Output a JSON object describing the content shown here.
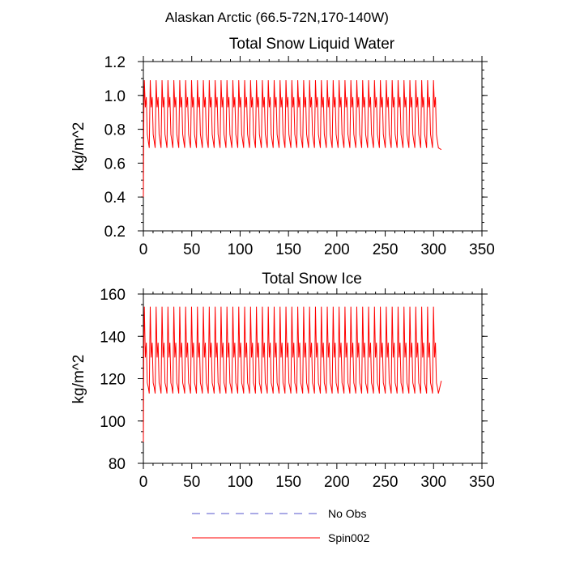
{
  "figure": {
    "title": "Alaskan Arctic (66.5-72N,170-140W)"
  },
  "legend": {
    "items": [
      {
        "label": "No Obs",
        "color": "#5555cc",
        "style": "dashed"
      },
      {
        "label": "Spin002",
        "color": "#ff0000",
        "style": "solid"
      }
    ]
  },
  "chart_data": [
    {
      "type": "line",
      "title": "Total Snow Liquid Water",
      "xlabel": "",
      "ylabel": "kg/m^2",
      "xlim": [
        0,
        350
      ],
      "ylim": [
        0.2,
        1.2
      ],
      "x_ticks": [
        0,
        50,
        100,
        150,
        200,
        250,
        300,
        350
      ],
      "y_ticks": [
        0.2,
        0.4,
        0.6,
        0.8,
        1.0,
        1.2
      ],
      "y_tick_labels": [
        "0.2",
        "0.4",
        "0.6",
        "0.8",
        "1.0",
        "1.2"
      ],
      "grid": false,
      "series": [
        {
          "name": "Spin002",
          "color": "#ff0000",
          "x_start": 0,
          "x_step": 1,
          "initial_values": [
            0.4,
            0.9
          ],
          "cycle_days": 6.1,
          "cycle_count": 50,
          "cycle_profile": [
            1.09,
            0.93,
            0.99,
            0.77,
            0.73,
            0.69
          ],
          "end_value": 0.68,
          "x_end": 308
        }
      ]
    },
    {
      "type": "line",
      "title": "Total Snow Ice",
      "xlabel": "",
      "ylabel": "kg/m^2",
      "xlim": [
        0,
        350
      ],
      "ylim": [
        80,
        160
      ],
      "x_ticks": [
        0,
        50,
        100,
        150,
        200,
        250,
        300,
        350
      ],
      "y_ticks": [
        80,
        100,
        120,
        140,
        160
      ],
      "y_tick_labels": [
        "80",
        "100",
        "120",
        "140",
        "160"
      ],
      "grid": false,
      "series": [
        {
          "name": "Spin002",
          "color": "#ff0000",
          "x_start": 0,
          "x_step": 1,
          "initial_values": [
            90,
            140
          ],
          "cycle_days": 6.1,
          "cycle_count": 50,
          "cycle_profile": [
            154,
            130,
            137,
            118,
            116,
            113
          ],
          "end_value": 119,
          "x_end": 308
        }
      ]
    }
  ]
}
